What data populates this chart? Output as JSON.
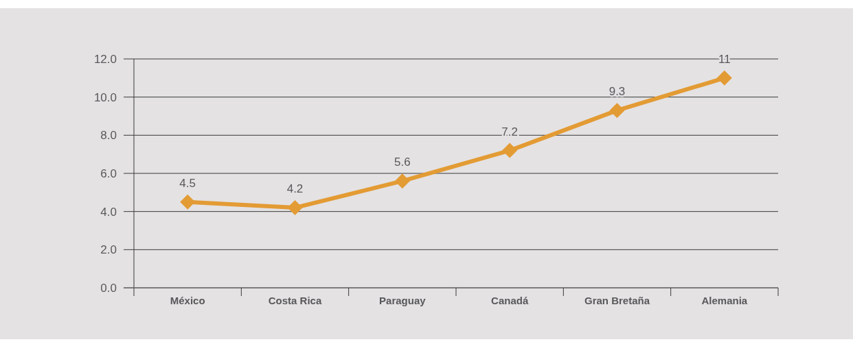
{
  "chart_data": {
    "type": "line",
    "categories": [
      "México",
      "Costa Rica",
      "Paraguay",
      "Canadá",
      "Gran Bretaña",
      "Alemania"
    ],
    "series": [
      {
        "color": "#e39b34",
        "values": [
          4.5,
          4.2,
          5.6,
          7.2,
          9.3,
          11
        ]
      }
    ],
    "ylim": [
      0,
      12
    ],
    "yticks": [
      {
        "value": 0,
        "label": "0.0"
      },
      {
        "value": 2,
        "label": "2.0"
      },
      {
        "value": 4,
        "label": "4.0"
      },
      {
        "value": 6,
        "label": "6.0"
      },
      {
        "value": 8,
        "label": "8.0"
      },
      {
        "value": 10,
        "label": "10.0"
      },
      {
        "value": 12,
        "label": "12.0"
      }
    ],
    "grid": "y",
    "marker": "diamond",
    "data_labels": true
  }
}
